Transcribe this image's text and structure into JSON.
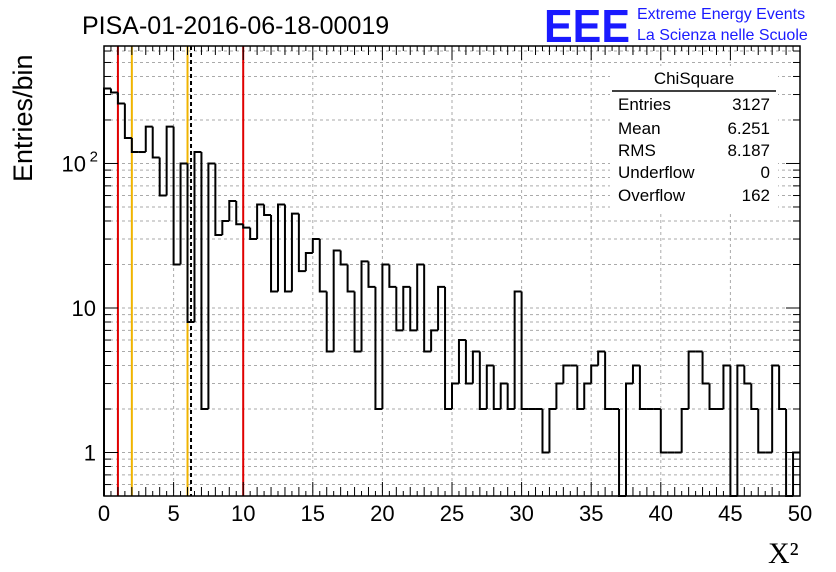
{
  "header": {
    "run_title": "PISA-01-2016-06-18-00019",
    "logo_mark": "EEE",
    "logo_line1": "Extreme Energy Events",
    "logo_line2": "La Scienza nelle Scuole"
  },
  "stats_box": {
    "title": "ChiSquare",
    "rows": [
      {
        "label": "Entries",
        "value": "3127"
      },
      {
        "label": "Mean",
        "value": "6.251"
      },
      {
        "label": "RMS",
        "value": "8.187"
      },
      {
        "label": "Underflow",
        "value": "0"
      },
      {
        "label": "Overflow",
        "value": "162"
      }
    ]
  },
  "chart_data": {
    "type": "histogram",
    "title": "PISA-01-2016-06-18-00019",
    "xlabel": "X²",
    "ylabel": "Entries/bin",
    "xlim": [
      0,
      50
    ],
    "ylim": [
      0.5,
      650
    ],
    "yscale": "log",
    "grid": true,
    "bin_width": 0.5,
    "x_ticks": [
      "0",
      "5",
      "10",
      "15",
      "20",
      "25",
      "30",
      "35",
      "40",
      "45",
      "50"
    ],
    "y_ticks": [
      {
        "value": 1,
        "label": "1",
        "sup": ""
      },
      {
        "value": 10,
        "label": "10",
        "sup": ""
      },
      {
        "value": 100,
        "label": "10",
        "sup": "2"
      }
    ],
    "values": [
      330,
      310,
      260,
      150,
      120,
      120,
      180,
      110,
      60,
      180,
      20,
      100,
      8,
      120,
      2,
      100,
      32,
      40,
      55,
      38,
      36,
      30,
      52,
      44,
      13,
      52,
      13,
      45,
      18,
      24,
      30,
      13,
      5,
      25,
      20,
      13,
      5,
      21,
      14,
      2,
      20,
      14,
      7,
      14,
      7,
      20,
      5,
      7,
      14,
      2,
      3,
      6,
      3,
      5,
      2,
      4,
      2,
      3,
      2,
      13,
      2,
      2,
      2,
      1,
      2,
      3,
      4,
      4,
      2,
      3,
      4,
      5,
      2,
      2,
      0,
      3,
      4,
      2,
      2,
      2,
      1,
      1,
      1,
      2,
      5,
      5,
      3,
      2,
      2,
      4,
      0,
      4,
      3,
      2,
      1,
      1,
      4,
      2,
      0,
      1
    ],
    "vertical_lines": [
      {
        "x": 1,
        "color": "#e00000",
        "style": "solid"
      },
      {
        "x": 2,
        "color": "#f0b400",
        "style": "solid"
      },
      {
        "x": 6,
        "color": "#f0b400",
        "style": "solid"
      },
      {
        "x": 6.251,
        "color": "#000000",
        "style": "dashed"
      },
      {
        "x": 10,
        "color": "#e00000",
        "style": "solid"
      }
    ]
  }
}
